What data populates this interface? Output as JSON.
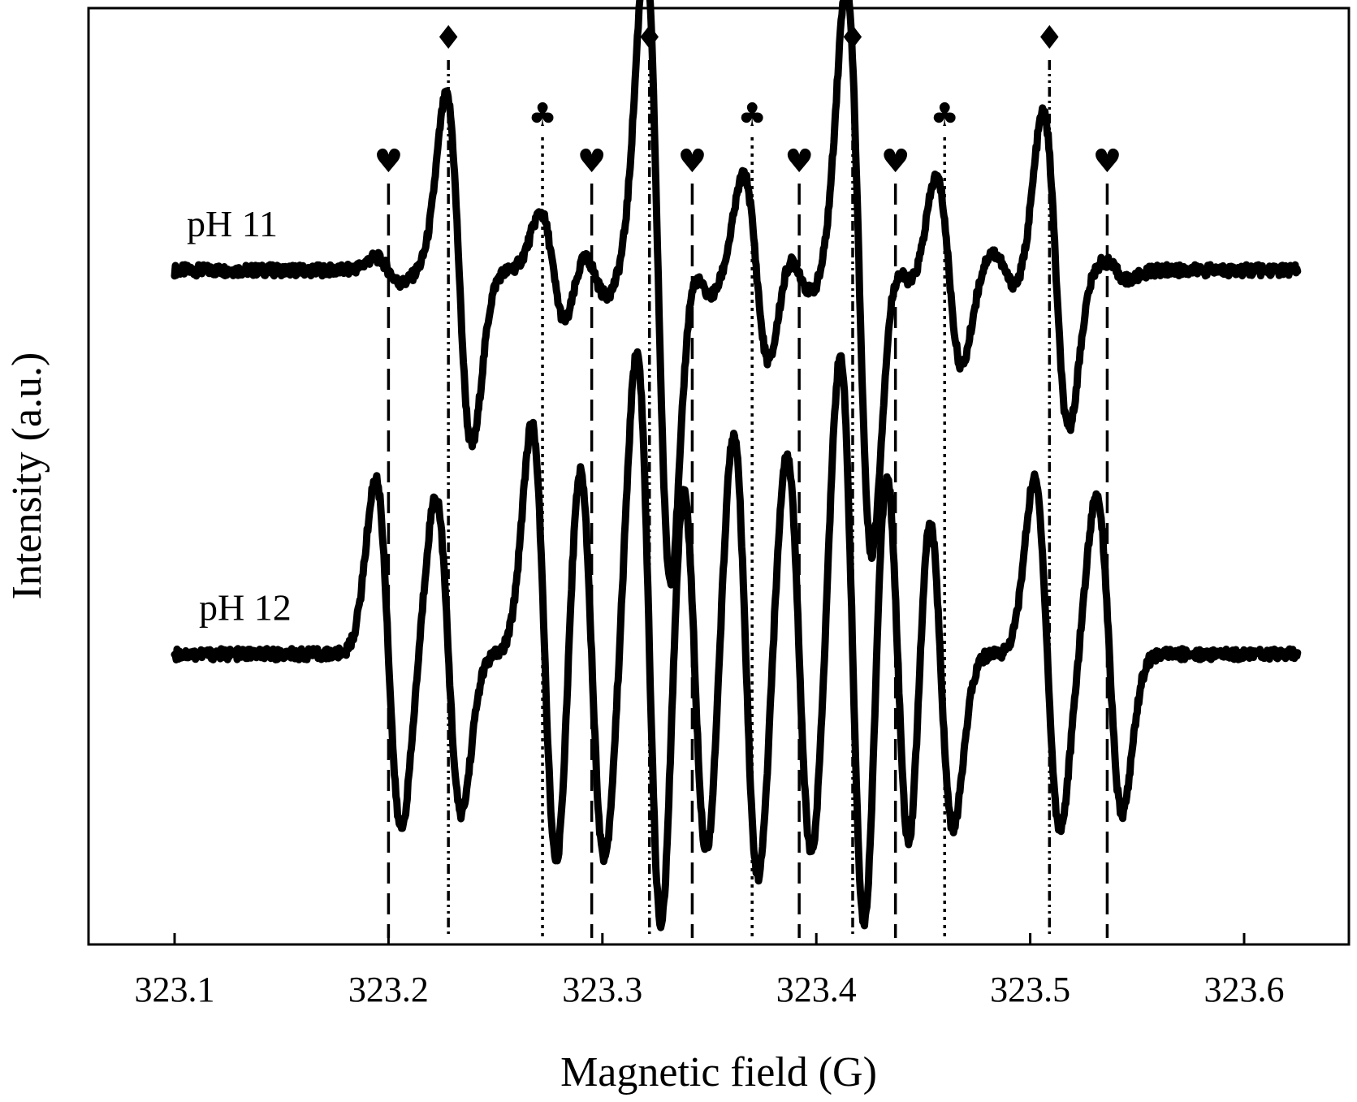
{
  "chart_data": {
    "type": "line",
    "xlabel": "Magnetic field (G)",
    "ylabel": "Intensity (a.u.)",
    "xlim": [
      323.06,
      323.65
    ],
    "x_ticks": [
      "323.1",
      "323.2",
      "323.3",
      "323.4",
      "323.5",
      "323.6"
    ],
    "y_ticks": [],
    "grid": false,
    "series": [
      {
        "name": "pH 11",
        "offset": 0.72,
        "scale": 0.34,
        "noise": 0.006,
        "peaks": [
          {
            "x": 323.2,
            "a": 0.04
          },
          {
            "x": 323.233,
            "a": 0.55
          },
          {
            "x": 323.277,
            "a": 0.18
          },
          {
            "x": 323.296,
            "a": 0.08
          },
          {
            "x": 323.326,
            "a": 1.0
          },
          {
            "x": 323.345,
            "a": 0.08
          },
          {
            "x": 323.372,
            "a": 0.3
          },
          {
            "x": 323.392,
            "a": 0.07
          },
          {
            "x": 323.42,
            "a": 0.9
          },
          {
            "x": 323.44,
            "a": 0.05
          },
          {
            "x": 323.462,
            "a": 0.3
          },
          {
            "x": 323.488,
            "a": 0.06
          },
          {
            "x": 323.512,
            "a": 0.5
          },
          {
            "x": 323.54,
            "a": 0.03
          }
        ]
      },
      {
        "name": "pH 12",
        "offset": 0.31,
        "scale": 0.34,
        "noise": 0.006,
        "peaks": [
          {
            "x": 323.2,
            "a": 0.55
          },
          {
            "x": 323.228,
            "a": 0.5
          },
          {
            "x": 323.273,
            "a": 0.72
          },
          {
            "x": 323.295,
            "a": 0.65
          },
          {
            "x": 323.322,
            "a": 0.95
          },
          {
            "x": 323.343,
            "a": 0.65
          },
          {
            "x": 323.367,
            "a": 0.72
          },
          {
            "x": 323.392,
            "a": 0.65
          },
          {
            "x": 323.417,
            "a": 0.95
          },
          {
            "x": 323.438,
            "a": 0.7
          },
          {
            "x": 323.458,
            "a": 0.55
          },
          {
            "x": 323.508,
            "a": 0.55
          },
          {
            "x": 323.537,
            "a": 0.5
          }
        ]
      }
    ],
    "markers": [
      {
        "x": 323.2,
        "symbol": "♥",
        "style": "dashed"
      },
      {
        "x": 323.228,
        "symbol": "♦",
        "style": "dashdotdot"
      },
      {
        "x": 323.272,
        "symbol": "♣",
        "style": "dotted"
      },
      {
        "x": 323.295,
        "symbol": "♥",
        "style": "dashed"
      },
      {
        "x": 323.322,
        "symbol": "♦",
        "style": "dashdotdot"
      },
      {
        "x": 323.342,
        "symbol": "♥",
        "style": "dashed"
      },
      {
        "x": 323.37,
        "symbol": "♣",
        "style": "dotted"
      },
      {
        "x": 323.392,
        "symbol": "♥",
        "style": "dashed"
      },
      {
        "x": 323.417,
        "symbol": "♦",
        "style": "dashdotdot"
      },
      {
        "x": 323.437,
        "symbol": "♥",
        "style": "dashed"
      },
      {
        "x": 323.46,
        "symbol": "♣",
        "style": "dotted"
      },
      {
        "x": 323.509,
        "symbol": "♦",
        "style": "dashdotdot"
      },
      {
        "x": 323.536,
        "symbol": "♥",
        "style": "dashed"
      }
    ]
  }
}
